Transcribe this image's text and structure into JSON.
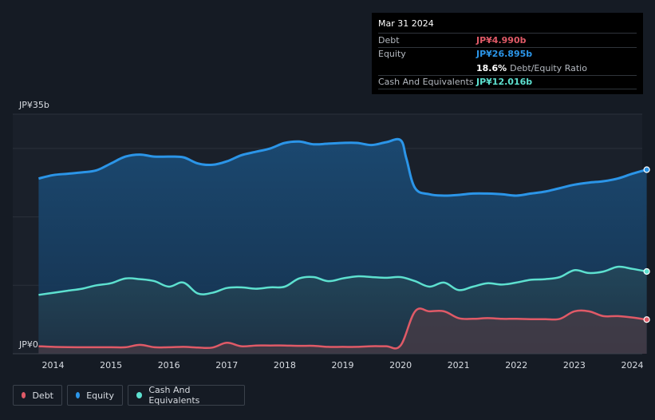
{
  "tooltip": {
    "date": "Mar 31 2024",
    "debt_label": "Debt",
    "debt_value": "JP¥4.990b",
    "equity_label": "Equity",
    "equity_value": "JP¥26.895b",
    "ratio_value": "18.6%",
    "ratio_label": "Debt/Equity Ratio",
    "cash_label": "Cash And Equivalents",
    "cash_value": "JP¥12.016b"
  },
  "legend": {
    "debt": "Debt",
    "equity": "Equity",
    "cash": "Cash And Equivalents"
  },
  "colors": {
    "debt": "#e05a67",
    "equity": "#2b95e8",
    "cash": "#5de0cf",
    "background": "#151b24"
  },
  "chart_data": {
    "type": "area",
    "y_unit": "JP¥ billions",
    "ylim": [
      0,
      35
    ],
    "y_tick_labels": [
      {
        "value": 35,
        "label": "JP¥35b"
      },
      {
        "value": 0,
        "label": "JP¥0"
      }
    ],
    "xlim": [
      2013.7,
      2024.3
    ],
    "x_ticks": [
      2014,
      2015,
      2016,
      2017,
      2018,
      2019,
      2020,
      2021,
      2022,
      2023,
      2024
    ],
    "grid": true,
    "legend_position": "bottom-left",
    "series": [
      {
        "name": "Equity",
        "key": "equity",
        "points": [
          [
            2013.75,
            25.6
          ],
          [
            2014.0,
            26.1
          ],
          [
            2014.25,
            26.3
          ],
          [
            2014.5,
            26.5
          ],
          [
            2014.75,
            26.8
          ],
          [
            2015.0,
            27.8
          ],
          [
            2015.25,
            28.8
          ],
          [
            2015.5,
            29.1
          ],
          [
            2015.75,
            28.8
          ],
          [
            2016.0,
            28.8
          ],
          [
            2016.25,
            28.7
          ],
          [
            2016.5,
            27.8
          ],
          [
            2016.75,
            27.6
          ],
          [
            2017.0,
            28.1
          ],
          [
            2017.25,
            29.0
          ],
          [
            2017.5,
            29.5
          ],
          [
            2017.75,
            30.0
          ],
          [
            2018.0,
            30.8
          ],
          [
            2018.25,
            31.0
          ],
          [
            2018.5,
            30.6
          ],
          [
            2018.75,
            30.7
          ],
          [
            2019.0,
            30.8
          ],
          [
            2019.25,
            30.8
          ],
          [
            2019.5,
            30.5
          ],
          [
            2019.75,
            30.9
          ],
          [
            2020.0,
            31.2
          ],
          [
            2020.1,
            28.5
          ],
          [
            2020.25,
            24.2
          ],
          [
            2020.5,
            23.3
          ],
          [
            2020.75,
            23.1
          ],
          [
            2021.0,
            23.2
          ],
          [
            2021.25,
            23.4
          ],
          [
            2021.5,
            23.4
          ],
          [
            2021.75,
            23.3
          ],
          [
            2022.0,
            23.1
          ],
          [
            2022.25,
            23.4
          ],
          [
            2022.5,
            23.7
          ],
          [
            2022.75,
            24.2
          ],
          [
            2023.0,
            24.7
          ],
          [
            2023.25,
            25.0
          ],
          [
            2023.5,
            25.2
          ],
          [
            2023.75,
            25.6
          ],
          [
            2024.0,
            26.3
          ],
          [
            2024.25,
            26.895
          ]
        ]
      },
      {
        "name": "Cash And Equivalents",
        "key": "cash",
        "points": [
          [
            2013.75,
            8.6
          ],
          [
            2014.0,
            8.9
          ],
          [
            2014.25,
            9.2
          ],
          [
            2014.5,
            9.5
          ],
          [
            2014.75,
            10.0
          ],
          [
            2015.0,
            10.3
          ],
          [
            2015.25,
            11.0
          ],
          [
            2015.5,
            10.9
          ],
          [
            2015.75,
            10.6
          ],
          [
            2016.0,
            9.8
          ],
          [
            2016.25,
            10.4
          ],
          [
            2016.5,
            8.8
          ],
          [
            2016.75,
            8.9
          ],
          [
            2017.0,
            9.6
          ],
          [
            2017.25,
            9.7
          ],
          [
            2017.5,
            9.5
          ],
          [
            2017.75,
            9.7
          ],
          [
            2018.0,
            9.8
          ],
          [
            2018.25,
            11.0
          ],
          [
            2018.5,
            11.2
          ],
          [
            2018.75,
            10.6
          ],
          [
            2019.0,
            11.0
          ],
          [
            2019.25,
            11.3
          ],
          [
            2019.5,
            11.2
          ],
          [
            2019.75,
            11.1
          ],
          [
            2020.0,
            11.2
          ],
          [
            2020.25,
            10.6
          ],
          [
            2020.5,
            9.8
          ],
          [
            2020.75,
            10.4
          ],
          [
            2021.0,
            9.3
          ],
          [
            2021.25,
            9.8
          ],
          [
            2021.5,
            10.3
          ],
          [
            2021.75,
            10.1
          ],
          [
            2022.0,
            10.4
          ],
          [
            2022.25,
            10.8
          ],
          [
            2022.5,
            10.9
          ],
          [
            2022.75,
            11.2
          ],
          [
            2023.0,
            12.2
          ],
          [
            2023.25,
            11.8
          ],
          [
            2023.5,
            12.0
          ],
          [
            2023.75,
            12.7
          ],
          [
            2024.0,
            12.4
          ],
          [
            2024.25,
            12.016
          ]
        ]
      },
      {
        "name": "Debt",
        "key": "debt",
        "points": [
          [
            2013.75,
            1.1
          ],
          [
            2014.0,
            1.0
          ],
          [
            2014.5,
            0.95
          ],
          [
            2015.0,
            0.95
          ],
          [
            2015.25,
            0.95
          ],
          [
            2015.5,
            1.3
          ],
          [
            2015.75,
            0.95
          ],
          [
            2016.0,
            0.95
          ],
          [
            2016.25,
            1.0
          ],
          [
            2016.5,
            0.9
          ],
          [
            2016.75,
            0.9
          ],
          [
            2017.0,
            1.6
          ],
          [
            2017.25,
            1.1
          ],
          [
            2017.5,
            1.2
          ],
          [
            2017.75,
            1.2
          ],
          [
            2018.0,
            1.2
          ],
          [
            2018.25,
            1.15
          ],
          [
            2018.5,
            1.15
          ],
          [
            2018.75,
            1.0
          ],
          [
            2019.0,
            1.0
          ],
          [
            2019.25,
            1.0
          ],
          [
            2019.5,
            1.1
          ],
          [
            2019.75,
            1.1
          ],
          [
            2020.0,
            1.2
          ],
          [
            2020.25,
            6.2
          ],
          [
            2020.5,
            6.2
          ],
          [
            2020.75,
            6.2
          ],
          [
            2021.0,
            5.2
          ],
          [
            2021.25,
            5.1
          ],
          [
            2021.5,
            5.2
          ],
          [
            2021.75,
            5.1
          ],
          [
            2022.0,
            5.1
          ],
          [
            2022.25,
            5.05
          ],
          [
            2022.5,
            5.05
          ],
          [
            2022.75,
            5.1
          ],
          [
            2023.0,
            6.2
          ],
          [
            2023.25,
            6.2
          ],
          [
            2023.5,
            5.5
          ],
          [
            2023.75,
            5.5
          ],
          [
            2024.0,
            5.3
          ],
          [
            2024.25,
            4.99
          ]
        ]
      }
    ]
  }
}
